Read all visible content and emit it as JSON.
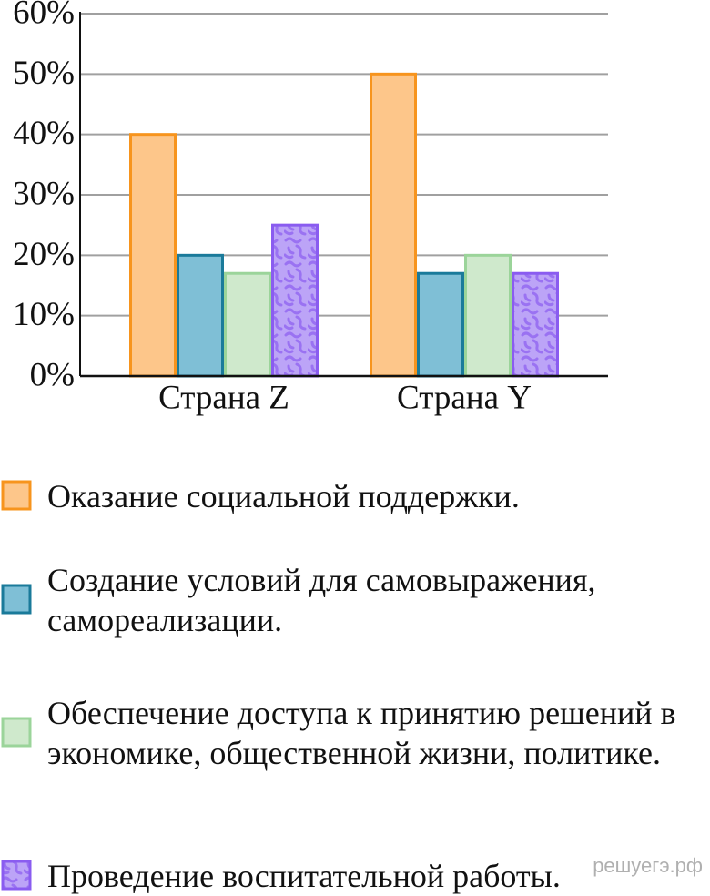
{
  "chart_data": {
    "type": "bar",
    "categories": [
      "Страна Z",
      "Страна Y"
    ],
    "series": [
      {
        "name": "Оказание социальной поддержки.",
        "color": "#fdc68a",
        "edge_color": "#f7941d",
        "values": [
          40,
          50
        ]
      },
      {
        "name": "Создание условий для самовыражения, самореализации.",
        "color": "#7fbfd6",
        "edge_color": "#1a7a9a",
        "values": [
          20,
          17
        ]
      },
      {
        "name": "Обеспечение доступа к принятию решений в экономике, общественной жизни, политике.",
        "color": "#cfe9cc",
        "edge_color": "#9bd49a",
        "values": [
          17,
          20
        ]
      },
      {
        "name": "Проведение воспитательной работы.",
        "color": "#bca4f7",
        "edge_color": "#8a5cf0",
        "pattern": true,
        "values": [
          25,
          17
        ]
      }
    ],
    "ylim": [
      0,
      60
    ],
    "yticks": [
      {
        "value": 0,
        "label": "0%"
      },
      {
        "value": 10,
        "label": "10%"
      },
      {
        "value": 20,
        "label": "20%"
      },
      {
        "value": 30,
        "label": "30%"
      },
      {
        "value": 40,
        "label": "40%"
      },
      {
        "value": 50,
        "label": "50%"
      },
      {
        "value": 60,
        "label": "60%"
      }
    ],
    "grid": true,
    "watermark": "решуегэ.рф"
  }
}
